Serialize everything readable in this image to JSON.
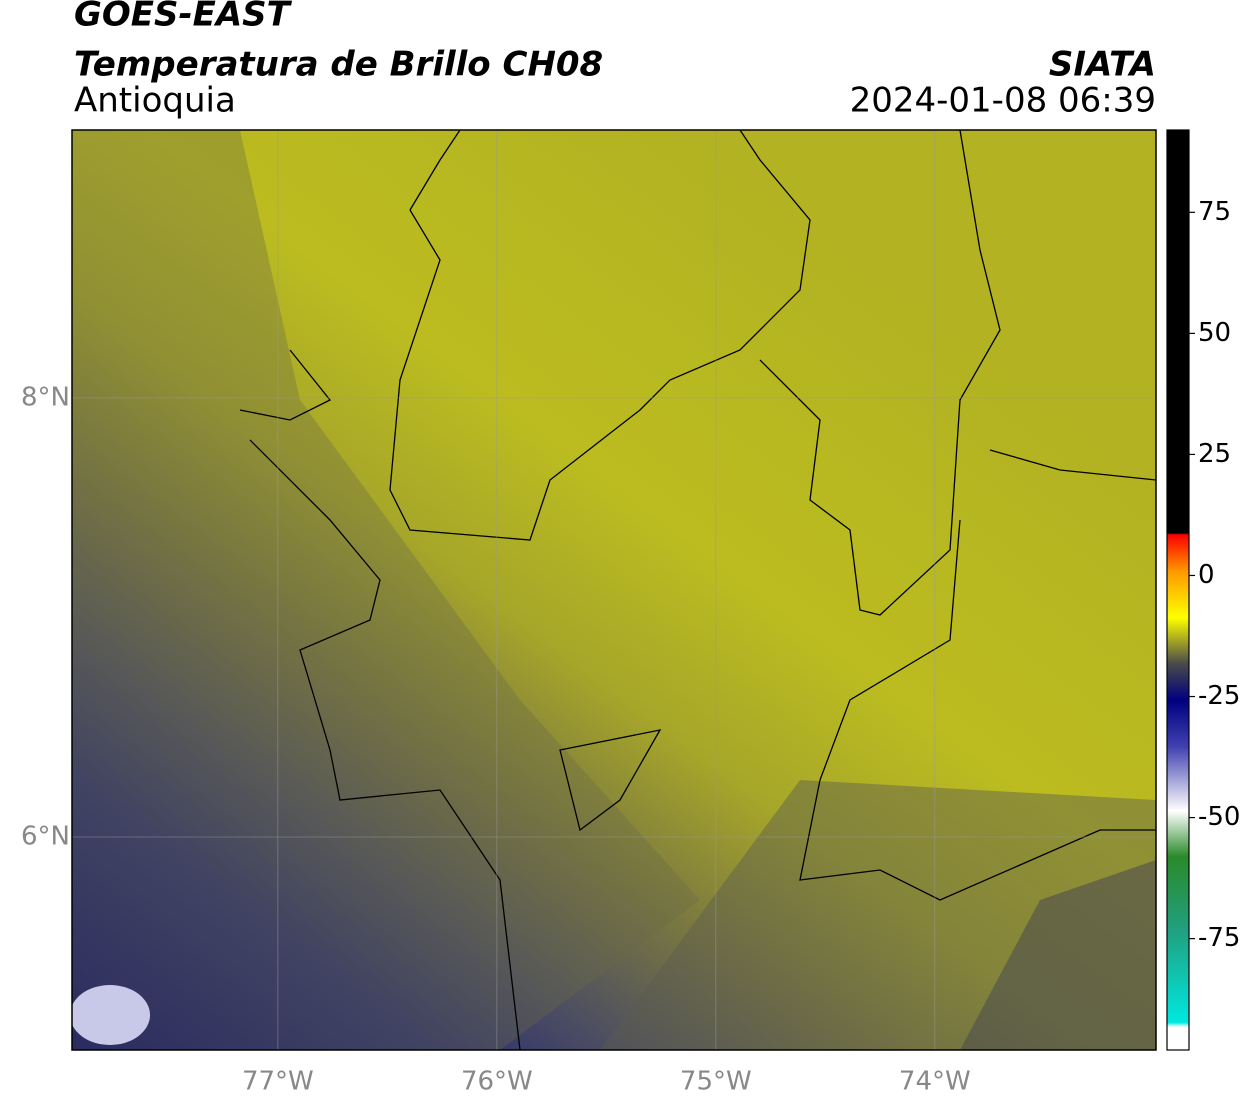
{
  "header": {
    "satellite": "GOES-EAST",
    "product": "Temperatura de Brillo CH08",
    "region": "Antioquia",
    "source": "SIATA",
    "datetime": "2024-01-08 06:39"
  },
  "map": {
    "xlim": [
      -77.94,
      -72.99
    ],
    "ylim": [
      5.03,
      9.22
    ],
    "xticks": [
      {
        "value": -77,
        "label": "77°W"
      },
      {
        "value": -76,
        "label": "76°W"
      },
      {
        "value": -75,
        "label": "75°W"
      },
      {
        "value": -74,
        "label": "74°W"
      }
    ],
    "yticks": [
      {
        "value": 8,
        "label": "8°N"
      },
      {
        "value": 6,
        "label": "6°N"
      }
    ],
    "grid": true
  },
  "colorbar": {
    "lim": [
      -98,
      92
    ],
    "ticks": [
      75,
      50,
      25,
      0,
      -25,
      -50,
      -75
    ]
  }
}
